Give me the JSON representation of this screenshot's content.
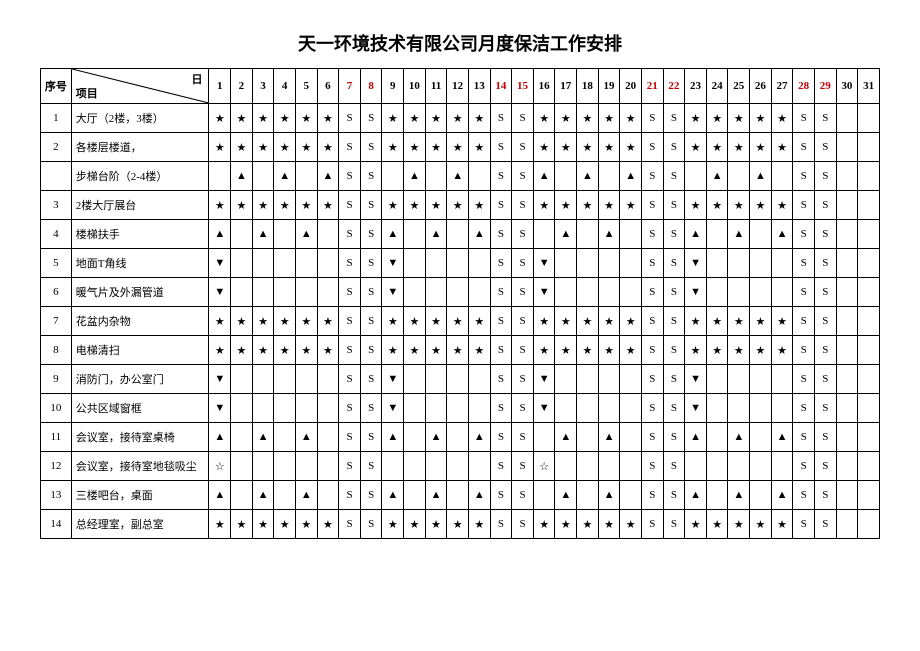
{
  "title": "天一环境技术有限公司月度保洁工作安排",
  "header": {
    "seq": "序号",
    "diag_top": "日",
    "diag_bot": "项目",
    "days": 31,
    "weekend_days": [
      7,
      8,
      14,
      15,
      21,
      22,
      28,
      29
    ]
  },
  "symbols": {
    "star": "★",
    "tri": "▲",
    "dtri": "▼",
    "ostar": "☆",
    "s": "S",
    "blank": ""
  },
  "colors": {
    "weekend": "#c00000",
    "normal": "#000000",
    "bg": "#ffffff",
    "border": "#000000"
  },
  "fontsize": {
    "title": 18,
    "cell": 11
  },
  "rows": [
    {
      "seq": "1",
      "name": "大厅（2楼，3楼）",
      "cells": [
        "star",
        "star",
        "star",
        "star",
        "star",
        "star",
        "s",
        "s",
        "star",
        "star",
        "star",
        "star",
        "star",
        "s",
        "s",
        "star",
        "star",
        "star",
        "star",
        "star",
        "s",
        "s",
        "star",
        "star",
        "star",
        "star",
        "star",
        "s",
        "s",
        "blank",
        "blank"
      ]
    },
    {
      "seq": "2",
      "name": "各楼层楼道，",
      "cells": [
        "star",
        "star",
        "star",
        "star",
        "star",
        "star",
        "s",
        "s",
        "star",
        "star",
        "star",
        "star",
        "star",
        "s",
        "s",
        "star",
        "star",
        "star",
        "star",
        "star",
        "s",
        "s",
        "star",
        "star",
        "star",
        "star",
        "star",
        "s",
        "s",
        "blank",
        "blank"
      ]
    },
    {
      "seq": "",
      "name": "步梯台阶（2-4楼）",
      "cells": [
        "blank",
        "tri",
        "blank",
        "tri",
        "blank",
        "tri",
        "s",
        "s",
        "blank",
        "tri",
        "blank",
        "tri",
        "blank",
        "s",
        "s",
        "tri",
        "blank",
        "tri",
        "blank",
        "tri",
        "s",
        "s",
        "blank",
        "tri",
        "blank",
        "tri",
        "blank",
        "s",
        "s",
        "blank",
        "blank"
      ]
    },
    {
      "seq": "3",
      "name": "2楼大厅展台",
      "cells": [
        "star",
        "star",
        "star",
        "star",
        "star",
        "star",
        "s",
        "s",
        "star",
        "star",
        "star",
        "star",
        "star",
        "s",
        "s",
        "star",
        "star",
        "star",
        "star",
        "star",
        "s",
        "s",
        "star",
        "star",
        "star",
        "star",
        "star",
        "s",
        "s",
        "blank",
        "blank"
      ]
    },
    {
      "seq": "4",
      "name": "楼梯扶手",
      "cells": [
        "tri",
        "blank",
        "tri",
        "blank",
        "tri",
        "blank",
        "s",
        "s",
        "tri",
        "blank",
        "tri",
        "blank",
        "tri",
        "s",
        "s",
        "blank",
        "tri",
        "blank",
        "tri",
        "blank",
        "s",
        "s",
        "tri",
        "blank",
        "tri",
        "blank",
        "tri",
        "s",
        "s",
        "blank",
        "blank"
      ]
    },
    {
      "seq": "5",
      "name": "地面T角线",
      "cells": [
        "dtri",
        "blank",
        "blank",
        "blank",
        "blank",
        "blank",
        "s",
        "s",
        "dtri",
        "blank",
        "blank",
        "blank",
        "blank",
        "s",
        "s",
        "dtri",
        "blank",
        "blank",
        "blank",
        "blank",
        "s",
        "s",
        "dtri",
        "blank",
        "blank",
        "blank",
        "blank",
        "s",
        "s",
        "blank",
        "blank"
      ]
    },
    {
      "seq": "6",
      "name": "暖气片及外漏管道",
      "cells": [
        "dtri",
        "blank",
        "blank",
        "blank",
        "blank",
        "blank",
        "s",
        "s",
        "dtri",
        "blank",
        "blank",
        "blank",
        "blank",
        "s",
        "s",
        "dtri",
        "blank",
        "blank",
        "blank",
        "blank",
        "s",
        "s",
        "dtri",
        "blank",
        "blank",
        "blank",
        "blank",
        "s",
        "s",
        "blank",
        "blank"
      ]
    },
    {
      "seq": "7",
      "name": "花盆内杂物",
      "cells": [
        "star",
        "star",
        "star",
        "star",
        "star",
        "star",
        "s",
        "s",
        "star",
        "star",
        "star",
        "star",
        "star",
        "s",
        "s",
        "star",
        "star",
        "star",
        "star",
        "star",
        "s",
        "s",
        "star",
        "star",
        "star",
        "star",
        "star",
        "s",
        "s",
        "blank",
        "blank"
      ]
    },
    {
      "seq": "8",
      "name": "电梯清扫",
      "cells": [
        "star",
        "star",
        "star",
        "star",
        "star",
        "star",
        "s",
        "s",
        "star",
        "star",
        "star",
        "star",
        "star",
        "s",
        "s",
        "star",
        "star",
        "star",
        "star",
        "star",
        "s",
        "s",
        "star",
        "star",
        "star",
        "star",
        "star",
        "s",
        "s",
        "blank",
        "blank"
      ]
    },
    {
      "seq": "9",
      "name": "消防门，办公室门",
      "cells": [
        "dtri",
        "blank",
        "blank",
        "blank",
        "blank",
        "blank",
        "s",
        "s",
        "dtri",
        "blank",
        "blank",
        "blank",
        "blank",
        "s",
        "s",
        "dtri",
        "blank",
        "blank",
        "blank",
        "blank",
        "s",
        "s",
        "dtri",
        "blank",
        "blank",
        "blank",
        "blank",
        "s",
        "s",
        "blank",
        "blank"
      ]
    },
    {
      "seq": "10",
      "name": "公共区域窗框",
      "cells": [
        "dtri",
        "blank",
        "blank",
        "blank",
        "blank",
        "blank",
        "s",
        "s",
        "dtri",
        "blank",
        "blank",
        "blank",
        "blank",
        "s",
        "s",
        "dtri",
        "blank",
        "blank",
        "blank",
        "blank",
        "s",
        "s",
        "dtri",
        "blank",
        "blank",
        "blank",
        "blank",
        "s",
        "s",
        "blank",
        "blank"
      ]
    },
    {
      "seq": "11",
      "name": "会议室，接待室桌椅",
      "cells": [
        "tri",
        "blank",
        "tri",
        "blank",
        "tri",
        "blank",
        "s",
        "s",
        "tri",
        "blank",
        "tri",
        "blank",
        "tri",
        "s",
        "s",
        "blank",
        "tri",
        "blank",
        "tri",
        "blank",
        "s",
        "s",
        "tri",
        "blank",
        "tri",
        "blank",
        "tri",
        "s",
        "s",
        "blank",
        "blank"
      ]
    },
    {
      "seq": "12",
      "name": "会议室，接待室地毯吸尘",
      "cells": [
        "ostar",
        "blank",
        "blank",
        "blank",
        "blank",
        "blank",
        "s",
        "s",
        "blank",
        "blank",
        "blank",
        "blank",
        "blank",
        "s",
        "s",
        "ostar",
        "blank",
        "blank",
        "blank",
        "blank",
        "s",
        "s",
        "blank",
        "blank",
        "blank",
        "blank",
        "blank",
        "s",
        "s",
        "blank",
        "blank"
      ]
    },
    {
      "seq": "13",
      "name": "三楼吧台，桌面",
      "cells": [
        "tri",
        "blank",
        "tri",
        "blank",
        "tri",
        "blank",
        "s",
        "s",
        "tri",
        "blank",
        "tri",
        "blank",
        "tri",
        "s",
        "s",
        "blank",
        "tri",
        "blank",
        "tri",
        "blank",
        "s",
        "s",
        "tri",
        "blank",
        "tri",
        "blank",
        "tri",
        "s",
        "s",
        "blank",
        "blank"
      ]
    },
    {
      "seq": "14",
      "name": "总经理室，副总室",
      "cells": [
        "star",
        "star",
        "star",
        "star",
        "star",
        "star",
        "s",
        "s",
        "star",
        "star",
        "star",
        "star",
        "star",
        "s",
        "s",
        "star",
        "star",
        "star",
        "star",
        "star",
        "s",
        "s",
        "star",
        "star",
        "star",
        "star",
        "star",
        "s",
        "s",
        "blank",
        "blank"
      ]
    }
  ]
}
